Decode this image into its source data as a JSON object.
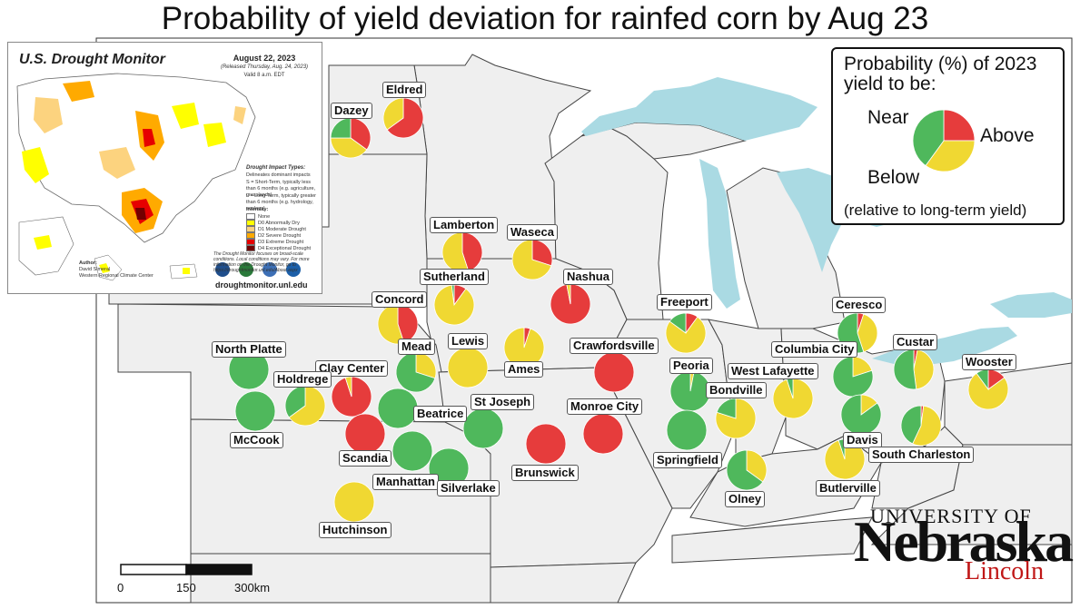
{
  "title": "Probability of yield deviation for rainfed corn by Aug 23",
  "colors": {
    "below": "#e63c3c",
    "near": "#f0d832",
    "above": "#4fb85c"
  },
  "legend": {
    "title_line1": "Probability (%) of 2023",
    "title_line2": "yield to be:",
    "near": "Near",
    "above": "Above",
    "below": "Below",
    "footnote": "(relative to long-term yield)"
  },
  "drought_monitor": {
    "title": "U.S. Drought Monitor",
    "date": "August 22, 2023",
    "released": "(Released Thursday, Aug. 24, 2023)",
    "valid": "Valid 8 a.m. EDT",
    "impact_types_title": "Drought Impact Types:",
    "impact_delineates": "Delineates dominant impacts",
    "impact_short": "S = Short-Term, typically less than 6 months (e.g. agriculture, grasslands)",
    "impact_long": "L = Long-Term, typically greater than 6 months (e.g. hydrology, ecology)",
    "intensity_title": "Intensity:",
    "intensity": [
      "None",
      "D0 Abnormally Dry",
      "D1 Moderate Drought",
      "D2 Severe Drought",
      "D3 Extreme Drought",
      "D4 Exceptional Drought"
    ],
    "intensity_colors": [
      "#ffffff",
      "#ffff00",
      "#fcd37f",
      "#ffaa00",
      "#e60000",
      "#730000"
    ],
    "author_label": "Author:",
    "author_name": "David Simeral",
    "author_org": "Western Regional Climate Center",
    "note": "The Drought Monitor focuses on broad-scale conditions. Local conditions may vary. For more information on the Drought Monitor, go to https://droughtmonitor.unl.edu/About.aspx",
    "logos": [
      "USDA",
      "NDMC",
      "NOAA"
    ],
    "url": "droughtmonitor.unl.edu"
  },
  "scale_bar": {
    "ticks": [
      "0",
      "150",
      "300km"
    ]
  },
  "logo": {
    "university": "UNIVERSITY OF",
    "name": "Nebraska",
    "campus": "Lincoln"
  },
  "sites": [
    {
      "name": "Dazey",
      "below": 35,
      "near": 40,
      "above": 25
    },
    {
      "name": "Eldred",
      "below": 65,
      "near": 35,
      "above": 0
    },
    {
      "name": "Lamberton",
      "below": 45,
      "near": 55,
      "above": 0
    },
    {
      "name": "Waseca",
      "below": 30,
      "near": 70,
      "above": 0
    },
    {
      "name": "Sutherland",
      "below": 10,
      "near": 88,
      "above": 2
    },
    {
      "name": "Nashua",
      "below": 97,
      "near": 3,
      "above": 0
    },
    {
      "name": "Concord",
      "below": 45,
      "near": 55,
      "above": 0
    },
    {
      "name": "Lewis",
      "below": 0,
      "near": 100,
      "above": 0
    },
    {
      "name": "Ames",
      "below": 5,
      "near": 95,
      "above": 0
    },
    {
      "name": "Crawfordsville",
      "below": 100,
      "near": 0,
      "above": 0
    },
    {
      "name": "North Platte",
      "below": 0,
      "near": 0,
      "above": 100
    },
    {
      "name": "Mead",
      "below": 0,
      "near": 30,
      "above": 70
    },
    {
      "name": "Clay Center",
      "below": 95,
      "near": 5,
      "above": 0
    },
    {
      "name": "Holdrege",
      "below": 0,
      "near": 65,
      "above": 35
    },
    {
      "name": "McCook",
      "below": 0,
      "near": 0,
      "above": 100
    },
    {
      "name": "Beatrice",
      "below": 0,
      "near": 0,
      "above": 100
    },
    {
      "name": "Scandia",
      "below": 100,
      "near": 0,
      "above": 0
    },
    {
      "name": "St Joseph",
      "below": 0,
      "near": 0,
      "above": 100
    },
    {
      "name": "Monroe City",
      "below": 100,
      "near": 0,
      "above": 0
    },
    {
      "name": "Brunswick",
      "below": 100,
      "near": 0,
      "above": 0
    },
    {
      "name": "Manhattan",
      "below": 0,
      "near": 0,
      "above": 100
    },
    {
      "name": "Silverlake",
      "below": 0,
      "near": 0,
      "above": 100
    },
    {
      "name": "Hutchinson",
      "below": 0,
      "near": 100,
      "above": 0
    },
    {
      "name": "Freeport",
      "below": 10,
      "near": 75,
      "above": 15
    },
    {
      "name": "Peoria",
      "below": 0,
      "near": 3,
      "above": 97
    },
    {
      "name": "Springfield",
      "below": 0,
      "near": 0,
      "above": 100
    },
    {
      "name": "Bondville",
      "below": 0,
      "near": 80,
      "above": 20
    },
    {
      "name": "West Lafayette",
      "below": 0,
      "near": 95,
      "above": 5
    },
    {
      "name": "Olney",
      "below": 0,
      "near": 35,
      "above": 65
    },
    {
      "name": "Ceresco",
      "below": 5,
      "near": 40,
      "above": 55
    },
    {
      "name": "Columbia City",
      "below": 0,
      "near": 20,
      "above": 80
    },
    {
      "name": "Custar",
      "below": 3,
      "near": 45,
      "above": 52
    },
    {
      "name": "Davis",
      "below": 0,
      "near": 15,
      "above": 85
    },
    {
      "name": "South Charleston",
      "below": 2,
      "near": 55,
      "above": 43
    },
    {
      "name": "Butlerville",
      "below": 0,
      "near": 95,
      "above": 5
    },
    {
      "name": "Wooster",
      "below": 15,
      "near": 75,
      "above": 10
    }
  ]
}
